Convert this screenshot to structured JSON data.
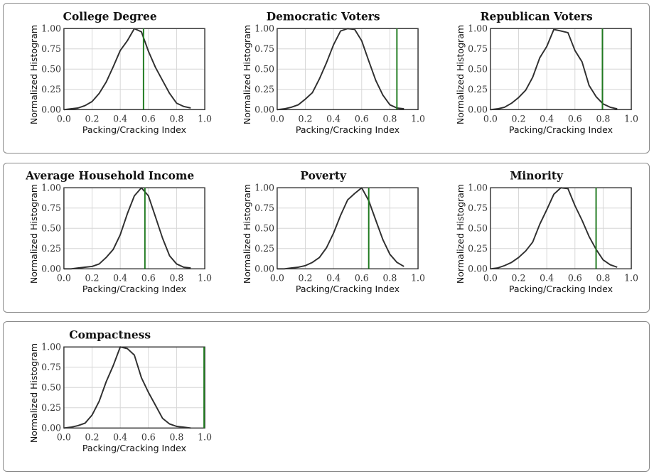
{
  "common": {
    "xlabel": "Packing/Cracking Index",
    "ylabel": "Normalized Histogram",
    "xticks": [
      "0.0",
      "0.2",
      "0.4",
      "0.6",
      "0.8",
      "1.0"
    ],
    "yticks": [
      "0.00",
      "0.25",
      "0.50",
      "0.75",
      "1.00"
    ],
    "curve_color": "#2f2f2f",
    "marker_color": "#1f7a1f"
  },
  "chart_data": [
    {
      "type": "line",
      "title": "College Degree",
      "xlabel": "Packing/Cracking Index",
      "ylabel": "Normalized Histogram",
      "xlim": [
        0,
        1
      ],
      "ylim": [
        0,
        1
      ],
      "x": [
        0.0,
        0.05,
        0.1,
        0.15,
        0.2,
        0.25,
        0.3,
        0.35,
        0.4,
        0.45,
        0.5,
        0.55,
        0.6,
        0.65,
        0.7,
        0.75,
        0.8,
        0.85,
        0.9
      ],
      "y": [
        0.0,
        0.01,
        0.02,
        0.05,
        0.1,
        0.2,
        0.34,
        0.53,
        0.73,
        0.85,
        1.0,
        0.96,
        0.72,
        0.52,
        0.36,
        0.2,
        0.08,
        0.04,
        0.02
      ],
      "marker_x": 0.565
    },
    {
      "type": "line",
      "title": "Democratic Voters",
      "xlabel": "Packing/Cracking Index",
      "ylabel": "Normalized Histogram",
      "xlim": [
        0,
        1
      ],
      "ylim": [
        0,
        1
      ],
      "x": [
        0.0,
        0.05,
        0.1,
        0.15,
        0.2,
        0.25,
        0.3,
        0.35,
        0.4,
        0.45,
        0.5,
        0.55,
        0.6,
        0.65,
        0.7,
        0.75,
        0.8,
        0.85,
        0.9
      ],
      "y": [
        0.0,
        0.01,
        0.03,
        0.06,
        0.13,
        0.21,
        0.38,
        0.58,
        0.8,
        0.97,
        1.0,
        0.99,
        0.85,
        0.6,
        0.36,
        0.18,
        0.06,
        0.02,
        0.01
      ],
      "marker_x": 0.85
    },
    {
      "type": "line",
      "title": "Republican Voters",
      "xlabel": "Packing/Cracking Index",
      "ylabel": "Normalized Histogram",
      "xlim": [
        0,
        1
      ],
      "ylim": [
        0,
        1
      ],
      "x": [
        0.0,
        0.05,
        0.1,
        0.15,
        0.2,
        0.25,
        0.3,
        0.35,
        0.4,
        0.45,
        0.5,
        0.55,
        0.6,
        0.65,
        0.7,
        0.75,
        0.8,
        0.85,
        0.9
      ],
      "y": [
        0.0,
        0.01,
        0.03,
        0.08,
        0.15,
        0.24,
        0.4,
        0.64,
        0.78,
        0.99,
        0.97,
        0.95,
        0.73,
        0.59,
        0.3,
        0.16,
        0.07,
        0.03,
        0.01
      ],
      "marker_x": 0.795
    },
    {
      "type": "line",
      "title": "Average Household Income",
      "xlabel": "Packing/Cracking Index",
      "ylabel": "Normalized Histogram",
      "xlim": [
        0,
        1
      ],
      "ylim": [
        0,
        1
      ],
      "x": [
        0.0,
        0.05,
        0.1,
        0.15,
        0.2,
        0.25,
        0.3,
        0.35,
        0.4,
        0.45,
        0.5,
        0.55,
        0.6,
        0.65,
        0.7,
        0.75,
        0.8,
        0.85,
        0.9
      ],
      "y": [
        0.0,
        0.0,
        0.01,
        0.02,
        0.03,
        0.06,
        0.14,
        0.24,
        0.42,
        0.68,
        0.9,
        1.0,
        0.9,
        0.64,
        0.38,
        0.16,
        0.06,
        0.02,
        0.01
      ],
      "marker_x": 0.575
    },
    {
      "type": "line",
      "title": "Poverty",
      "xlabel": "Packing/Cracking Index",
      "ylabel": "Normalized Histogram",
      "xlim": [
        0,
        1
      ],
      "ylim": [
        0,
        1
      ],
      "x": [
        0.0,
        0.05,
        0.1,
        0.15,
        0.2,
        0.25,
        0.3,
        0.35,
        0.4,
        0.45,
        0.5,
        0.55,
        0.6,
        0.65,
        0.7,
        0.75,
        0.8,
        0.85,
        0.9
      ],
      "y": [
        0.0,
        0.0,
        0.01,
        0.02,
        0.04,
        0.08,
        0.14,
        0.26,
        0.44,
        0.66,
        0.85,
        0.93,
        1.0,
        0.84,
        0.6,
        0.36,
        0.18,
        0.08,
        0.03
      ],
      "marker_x": 0.65
    },
    {
      "type": "line",
      "title": "Minority",
      "xlabel": "Packing/Cracking Index",
      "ylabel": "Normalized Histogram",
      "xlim": [
        0,
        1
      ],
      "ylim": [
        0,
        1
      ],
      "x": [
        0.0,
        0.05,
        0.1,
        0.15,
        0.2,
        0.25,
        0.3,
        0.35,
        0.4,
        0.45,
        0.5,
        0.55,
        0.6,
        0.65,
        0.7,
        0.75,
        0.8,
        0.85,
        0.9
      ],
      "y": [
        0.0,
        0.01,
        0.04,
        0.08,
        0.14,
        0.22,
        0.33,
        0.55,
        0.73,
        0.92,
        1.0,
        0.99,
        0.78,
        0.6,
        0.4,
        0.24,
        0.11,
        0.05,
        0.02
      ],
      "marker_x": 0.75
    },
    {
      "type": "line",
      "title": "Compactness",
      "xlabel": "Packing/Cracking Index",
      "ylabel": "Normalized Histogram",
      "xlim": [
        0,
        1
      ],
      "ylim": [
        0,
        1
      ],
      "x": [
        0.0,
        0.05,
        0.1,
        0.15,
        0.2,
        0.25,
        0.3,
        0.35,
        0.4,
        0.45,
        0.5,
        0.55,
        0.6,
        0.65,
        0.7,
        0.75,
        0.8,
        0.85,
        0.9
      ],
      "y": [
        0.0,
        0.01,
        0.03,
        0.06,
        0.16,
        0.33,
        0.57,
        0.77,
        1.0,
        0.98,
        0.9,
        0.62,
        0.44,
        0.28,
        0.12,
        0.05,
        0.02,
        0.01,
        0.0
      ],
      "marker_x": 0.995
    }
  ]
}
